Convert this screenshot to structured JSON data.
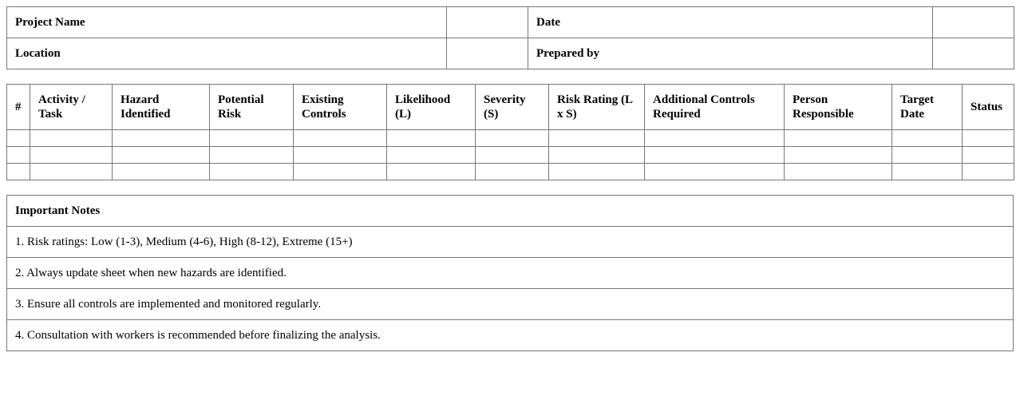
{
  "info": {
    "project_name_label": "Project Name",
    "date_label": "Date",
    "location_label": "Location",
    "prepared_by_label": "Prepared by"
  },
  "risk_table": {
    "headers": [
      "#",
      "Activity / Task",
      "Hazard Identified",
      "Potential Risk",
      "Existing Controls",
      "Likelihood (L)",
      "Severity (S)",
      "Risk Rating (L x S)",
      "Additional Controls Required",
      "Person Responsible",
      "Target Date",
      "Status"
    ],
    "row_count": 3
  },
  "notes": {
    "title": "Important Notes",
    "items": [
      "1. Risk ratings: Low (1-3), Medium (4-6), High (8-12), Extreme (15+)",
      "2. Always update sheet when new hazards are identified.",
      "3. Ensure all controls are implemented and monitored regularly.",
      "4. Consultation with workers is recommended before finalizing the analysis."
    ]
  }
}
